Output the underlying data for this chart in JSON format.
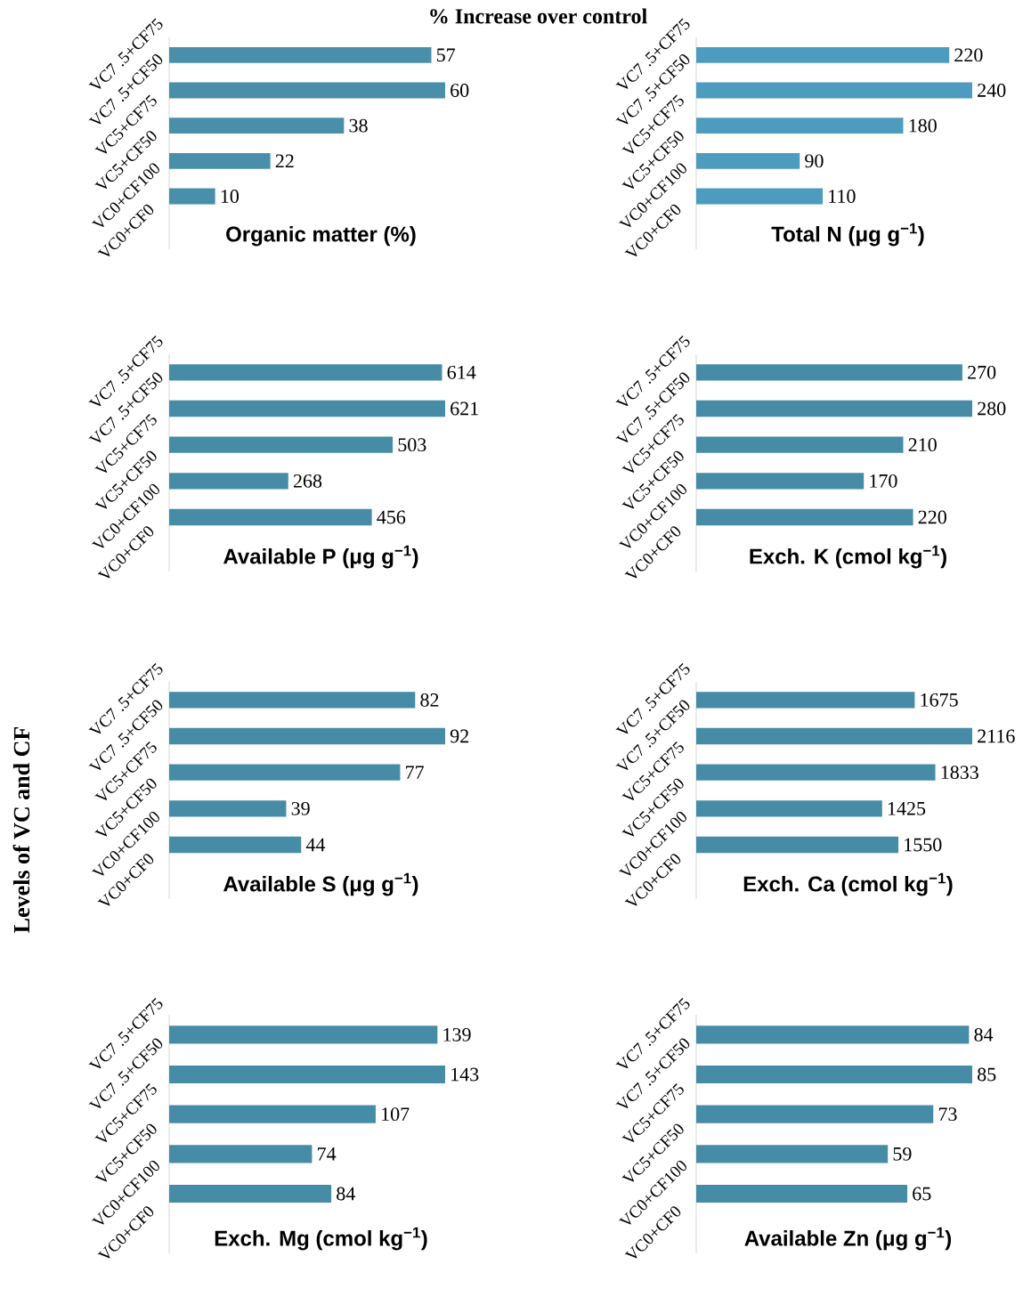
{
  "chart_data": [
    {
      "type": "bar",
      "orientation": "horizontal",
      "title": "% Increase over control",
      "xlabel": "Organic matter (%)",
      "categories": [
        "VC7 .5+CF75",
        "VC7 .5+CF50",
        "VC5+CF75",
        "VC5+CF50",
        "VC0+CF100",
        "VC0+CF0"
      ],
      "values": [
        57,
        60,
        38,
        22,
        10,
        null
      ],
      "color": "#4a8fa9",
      "data_labels": true
    },
    {
      "type": "bar",
      "orientation": "horizontal",
      "xlabel": "Total N (μg g$^{−1}$)",
      "categories": [
        "VC7 .5+CF75",
        "VC7 .5+CF50",
        "VC5+CF75",
        "VC5+CF50",
        "VC0+CF100",
        "VC0+CF0"
      ],
      "values": [
        220,
        240,
        180,
        90,
        110,
        null
      ],
      "color": "#4d9bbe",
      "data_labels": true
    },
    {
      "type": "bar",
      "orientation": "horizontal",
      "xlabel": "Available P (μg g$^{−1}$)",
      "categories": [
        "VC7 .5+CF75",
        "VC7 .5+CF50",
        "VC5+CF75",
        "VC5+CF50",
        "VC0+CF100",
        "VC0+CF0"
      ],
      "values": [
        614,
        621,
        503,
        268,
        456,
        null
      ],
      "color": "#468ca7",
      "data_labels": true
    },
    {
      "type": "bar",
      "orientation": "horizontal",
      "xlabel": "Exch. K (cmol kg$^{−1}$)",
      "categories": [
        "VC7 .5+CF75",
        "VC7 .5+CF50",
        "VC5+CF75",
        "VC5+CF50",
        "VC0+CF100",
        "VC0+CF0"
      ],
      "values": [
        270,
        280,
        210,
        170,
        220,
        null
      ],
      "color": "#468ca7",
      "data_labels": true
    },
    {
      "type": "bar",
      "orientation": "horizontal",
      "ylabel": "Levels of VC and CF",
      "xlabel": "Available S (μg g$^{−1}$)",
      "categories": [
        "VC7 .5+CF75",
        "VC7 .5+CF50",
        "VC5+CF75",
        "VC5+CF50",
        "VC0+CF100",
        "VC0+CF0"
      ],
      "values": [
        82,
        92,
        77,
        39,
        44,
        null
      ],
      "color": "#468ca7",
      "data_labels": true
    },
    {
      "type": "bar",
      "orientation": "horizontal",
      "xlabel": "Exch. Ca (cmol kg$^{−1}$)",
      "categories": [
        "VC7 .5+CF75",
        "VC7 .5+CF50",
        "VC5+CF75",
        "VC5+CF50",
        "VC0+CF100",
        "VC0+CF0"
      ],
      "values": [
        1675,
        2116,
        1833,
        1425,
        1550,
        null
      ],
      "color": "#468ca7",
      "data_labels": true
    },
    {
      "type": "bar",
      "orientation": "horizontal",
      "xlabel": "Exch. Mg (cmol kg$^{−1}$)",
      "categories": [
        "VC7 .5+CF75",
        "VC7 .5+CF50",
        "VC5+CF75",
        "VC5+CF50",
        "VC0+CF100",
        "VC0+CF0"
      ],
      "values": [
        139,
        143,
        107,
        74,
        84,
        null
      ],
      "color": "#468ca7",
      "data_labels": true
    },
    {
      "type": "bar",
      "orientation": "horizontal",
      "xlabel": "Available Zn (μg g$^{−1}$)",
      "categories": [
        "VC7 .5+CF75",
        "VC7 .5+CF50",
        "VC5+CF75",
        "VC5+CF50",
        "VC0+CF100",
        "VC0+CF0"
      ],
      "values": [
        84,
        85,
        73,
        59,
        65,
        null
      ],
      "color": "#468ca7",
      "data_labels": true
    }
  ]
}
